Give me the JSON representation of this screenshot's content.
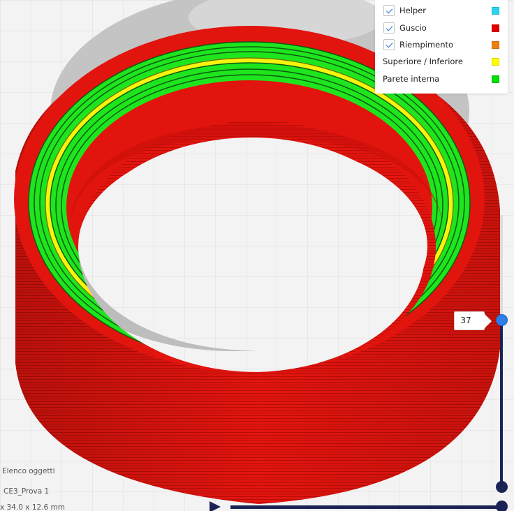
{
  "legend": {
    "items": [
      {
        "label": "Helper",
        "checkbox": true,
        "color": "#2ad4f0",
        "icon": "check-icon"
      },
      {
        "label": "Guscio",
        "checkbox": true,
        "color": "#e00000",
        "icon": "check-icon"
      },
      {
        "label": "Riempimento",
        "checkbox": true,
        "color": "#ee8013",
        "icon": "check-icon"
      },
      {
        "label": "Superiore / Inferiore",
        "checkbox": false,
        "color": "#ffff00"
      },
      {
        "label": "Parete interna",
        "checkbox": false,
        "color": "#00e000"
      }
    ]
  },
  "layer_slider": {
    "value": "37"
  },
  "object_list": {
    "title": "Elenco oggetti",
    "object_name": "CE3_Prova 1",
    "dimensions": "x 34.0 x 12.6 mm"
  },
  "colors": {
    "shell": "#e2140e",
    "inner_wall": "#1ee51e",
    "top_bottom": "#f6f40e",
    "slider": "#1b2356",
    "slider_handle": "#2f7de8"
  }
}
